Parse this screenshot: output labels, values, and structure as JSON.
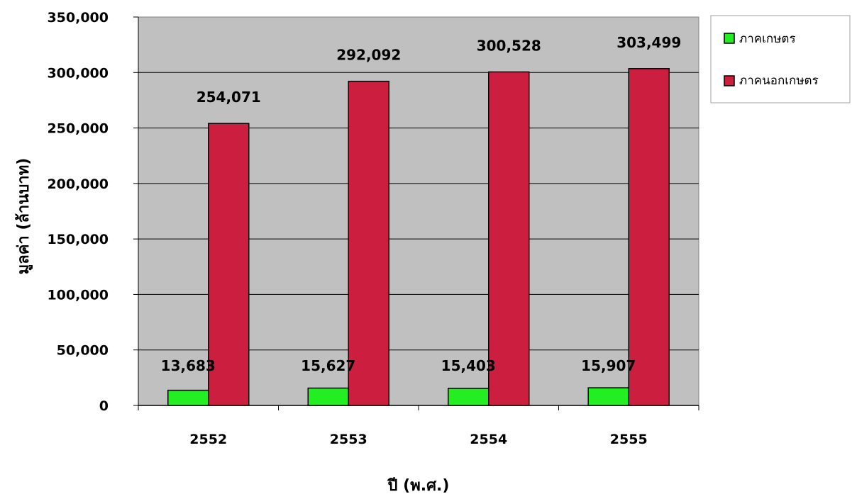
{
  "chart_data": {
    "type": "bar",
    "categories": [
      "2552",
      "2553",
      "2554",
      "2555"
    ],
    "series": [
      {
        "name": "ภาคเกษตร",
        "values": [
          13683,
          15627,
          15403,
          15907
        ],
        "labels": [
          "13,683",
          "15,627",
          "15,403",
          "15,907"
        ],
        "color": "#22ee22"
      },
      {
        "name": "ภาคนอกเกษตร",
        "values": [
          254071,
          292092,
          300528,
          303499
        ],
        "labels": [
          "254,071",
          "292,092",
          "300,528",
          "303,499"
        ],
        "color": "#cc1f3f"
      }
    ],
    "xlabel": "ปี (พ.ศ.)",
    "ylabel": "มูลค่า (ล้านบาท)",
    "ylim": [
      0,
      350000
    ],
    "yticks": [
      0,
      50000,
      100000,
      150000,
      200000,
      250000,
      300000,
      350000
    ],
    "ytick_labels": [
      "0",
      "50,000",
      "100,000",
      "150,000",
      "200,000",
      "250,000",
      "300,000",
      "350,000"
    ],
    "plot_background": "#c0c0c0",
    "grid": true,
    "legend_position": "right"
  }
}
